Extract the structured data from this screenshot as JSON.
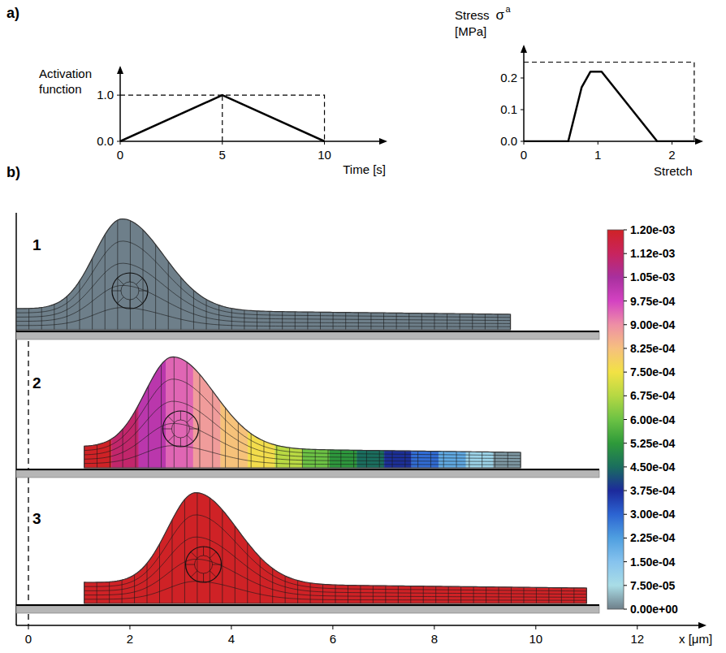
{
  "chart_data": [
    {
      "type": "line",
      "ylabel": "Activation function",
      "xlabel": "Time [s]",
      "x": [
        0,
        5,
        10
      ],
      "values": [
        0,
        1,
        0
      ],
      "color": "#000000",
      "xlim": [
        0,
        13
      ],
      "ylim": [
        0,
        1.6
      ],
      "xticks": [
        0,
        5,
        10
      ],
      "yticks": [
        {
          "value": 0,
          "label": "0.0"
        },
        {
          "value": 1,
          "label": "1.0"
        }
      ],
      "dashed_lines": [
        {
          "x": [
            0,
            10,
            10
          ],
          "y": [
            1,
            1,
            0
          ]
        },
        {
          "x": [
            5,
            5
          ],
          "y": [
            0,
            1
          ]
        }
      ]
    },
    {
      "type": "line",
      "ylabel": "Stress",
      "ylabel_symbol": "σ",
      "ylabel_superscript": "a",
      "ylabel_unit": "[MPa]",
      "xlabel": "Stretch",
      "x": [
        0,
        0.6,
        0.78,
        0.9,
        1.05,
        1.8,
        2.3
      ],
      "values": [
        0,
        0,
        0.17,
        0.22,
        0.22,
        0,
        0
      ],
      "color": "#000000",
      "xlim": [
        0,
        2.4
      ],
      "ylim": [
        0,
        0.3
      ],
      "xticks": [
        0,
        1,
        2
      ],
      "yticks": [
        {
          "value": 0,
          "label": "0.0"
        },
        0.1,
        0.2
      ],
      "dashed_lines": [
        {
          "x": [
            0,
            2.3,
            2.3
          ],
          "y": [
            0.25,
            0.25,
            0
          ]
        }
      ]
    }
  ],
  "panel_a_label": "a)",
  "panel_b": {
    "label": "b)",
    "xlabel": "x [μm]",
    "xlim": [
      -0.24,
      13.3
    ],
    "xticks": [
      0,
      2,
      4,
      6,
      8,
      10,
      12
    ],
    "colorbar": {
      "range": [
        0,
        0.0012
      ],
      "ticks": [
        {
          "value": 0.0012,
          "label": "1.20e-03"
        },
        {
          "value": 0.001125,
          "label": "1.12e-03"
        },
        {
          "value": 0.00105,
          "label": "1.05e-03"
        },
        {
          "value": 0.000975,
          "label": "9.75e-04"
        },
        {
          "value": 0.0009,
          "label": "9.00e-04"
        },
        {
          "value": 0.000825,
          "label": "8.25e-04"
        },
        {
          "value": 0.00075,
          "label": "7.50e-04"
        },
        {
          "value": 0.000675,
          "label": "6.75e-04"
        },
        {
          "value": 0.0006,
          "label": "6.00e-04"
        },
        {
          "value": 0.000525,
          "label": "5.25e-04"
        },
        {
          "value": 0.00045,
          "label": "4.50e-04"
        },
        {
          "value": 0.000375,
          "label": "3.75e-04"
        },
        {
          "value": 0.0003,
          "label": "3.00e-04"
        },
        {
          "value": 0.000225,
          "label": "2.25e-04"
        },
        {
          "value": 0.00015,
          "label": "1.50e-04"
        },
        {
          "value": 7.5e-05,
          "label": "7.50e-05"
        },
        {
          "value": 0,
          "label": "0.00e+00"
        }
      ]
    },
    "cells": [
      {
        "label": "1",
        "x_start": -0.24,
        "x_end": 9.5,
        "nucleus_x": 2.0,
        "displacement": [
          0
        ]
      },
      {
        "label": "2",
        "x_start": 1.1,
        "x_end": 9.7,
        "nucleus_x": 3.0,
        "displacement": [
          0.0012,
          0.00111,
          0.00102,
          0.00094,
          0.00088,
          0.00082,
          0.00076,
          0.00068,
          0.0006,
          0.00052,
          0.00045,
          0.00038,
          0.00029,
          0.0002,
          0.0001,
          2e-05
        ]
      },
      {
        "label": "3",
        "x_start": 1.1,
        "x_end": 11.0,
        "nucleus_x": 3.45,
        "displacement": [
          0.0012
        ]
      }
    ]
  }
}
